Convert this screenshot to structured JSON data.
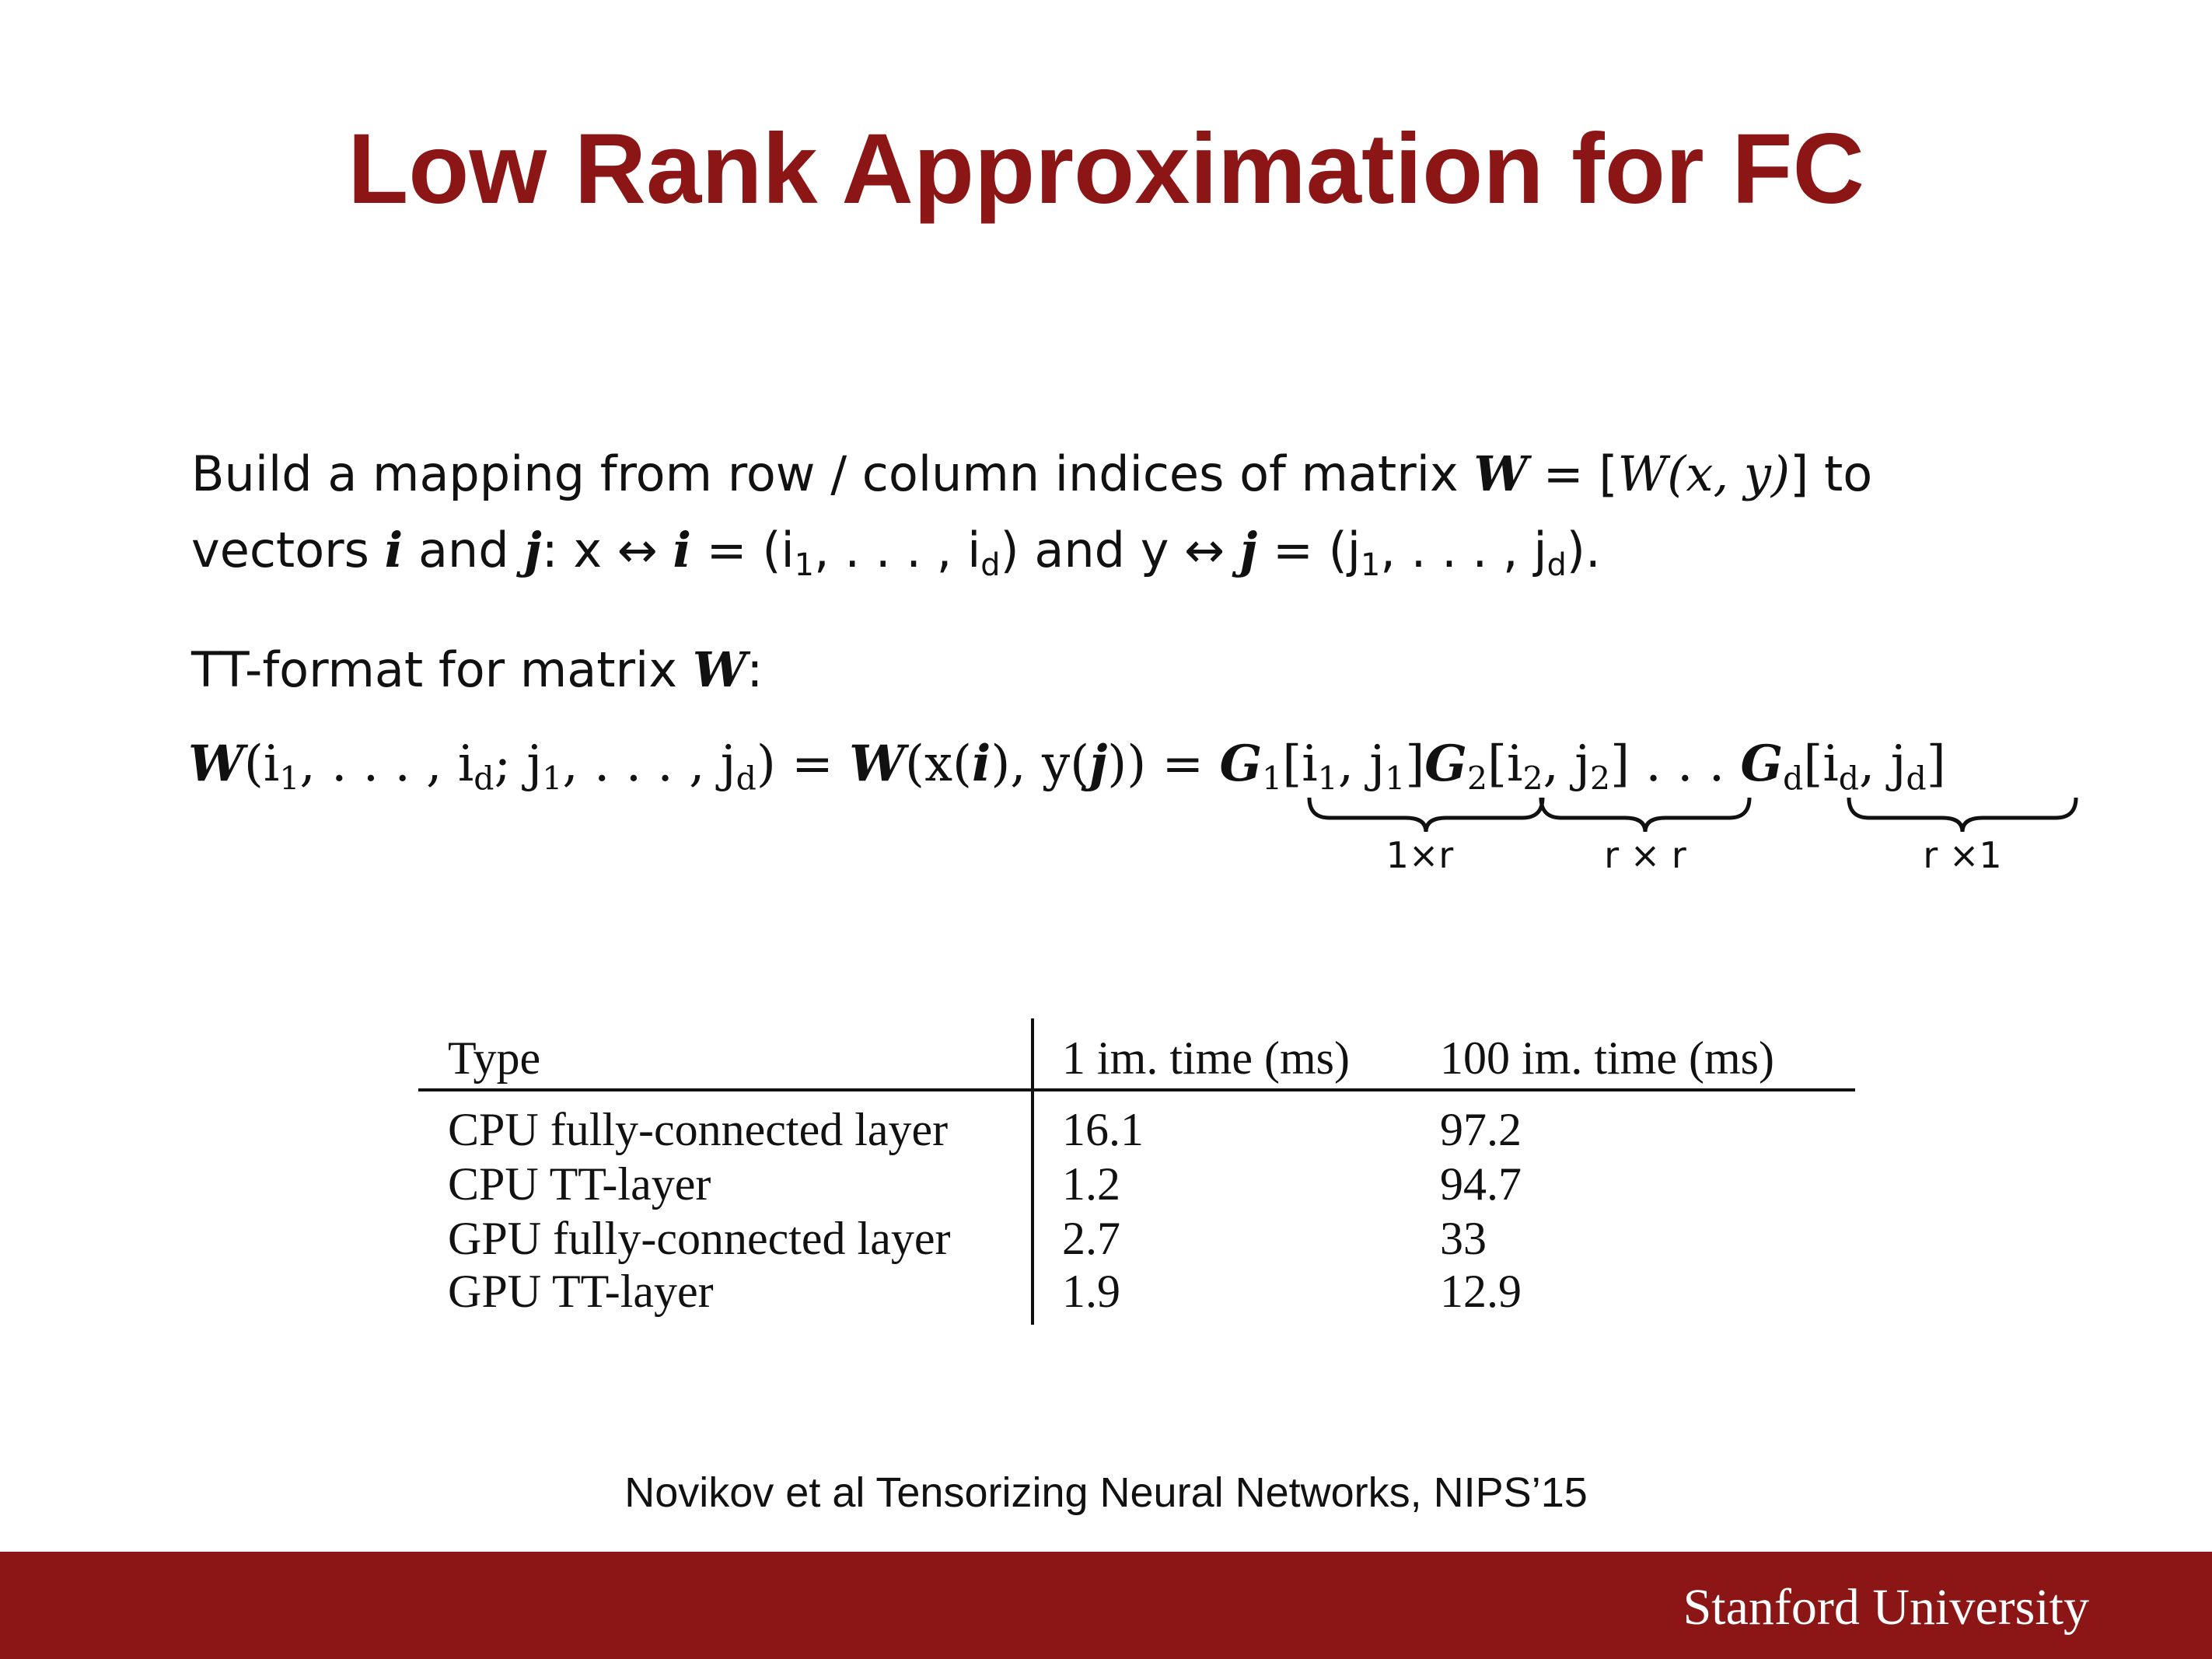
{
  "colors": {
    "accent": "#8c1515",
    "text": "#111111",
    "background": "#ffffff",
    "footer_text": "#ffffff"
  },
  "slide": {
    "title": "Low Rank Approximation for FC"
  },
  "body": {
    "line1": {
      "t1": "Build a mapping from row / column indices of matrix ",
      "W": "W",
      "eq": " = [",
      "Wfn": "W",
      "args": "(x, y)",
      "t2": "] to"
    },
    "line2": {
      "t1": "vectors ",
      "i": "i",
      "t2": " and ",
      "j": "j",
      "t3": ":  x ↔ ",
      "i2": "i",
      "t4": " = (i",
      "s1": "1",
      "t5": ", . . . , i",
      "sd": "d",
      "t6": ") and y ↔ ",
      "j2": "j",
      "t7": " = (j",
      "s2": "1",
      "t8": ", . . . , j",
      "sd2": "d",
      "t9": ")."
    },
    "line3": {
      "t1": "TT-format for matrix ",
      "W": "W",
      "t2": ":"
    }
  },
  "equation": {
    "W1": "W",
    "p1": "(i",
    "s1": "1",
    "p2": ", . . . , i",
    "sd": "d",
    "p3": "; j",
    "s2": "1",
    "p4": ", . . . , j",
    "sd2": "d",
    "p5": ") = ",
    "W2": "W",
    "p6": "(x(",
    "i": "i",
    "p7": "), y(",
    "j": "j",
    "p8": ")) = ",
    "G1": "G",
    "g1s": "1",
    "g1a": "[i",
    "g1b": "1",
    "g1c": ", j",
    "g1d": "1",
    "g1e": "]",
    "G2": "G",
    "g2s": "2",
    "g2a": "[i",
    "g2b": "2",
    "g2c": ", j",
    "g2d": "2",
    "g2e": "]",
    "dots": " . . . ",
    "Gd": "G",
    "gds": "d",
    "gda": "[i",
    "gdb": "d",
    "gdc": ", j",
    "gdd": "d",
    "gde": "]",
    "brace_labels": [
      "1×r",
      "r × r",
      "r ×1"
    ]
  },
  "table": {
    "headers": [
      "Type",
      "1 im. time (ms)",
      "100 im. time (ms)"
    ],
    "rows": [
      [
        "CPU fully-connected layer",
        "16.1",
        "97.2"
      ],
      [
        "CPU TT-layer",
        "1.2",
        "94.7"
      ],
      [
        "GPU fully-connected layer",
        "2.7",
        "33"
      ],
      [
        "GPU TT-layer",
        "1.9",
        "12.9"
      ]
    ]
  },
  "citation": "Novikov et al Tensorizing Neural Networks, NIPS’15",
  "footer": {
    "logo_text": "Stanford University"
  }
}
